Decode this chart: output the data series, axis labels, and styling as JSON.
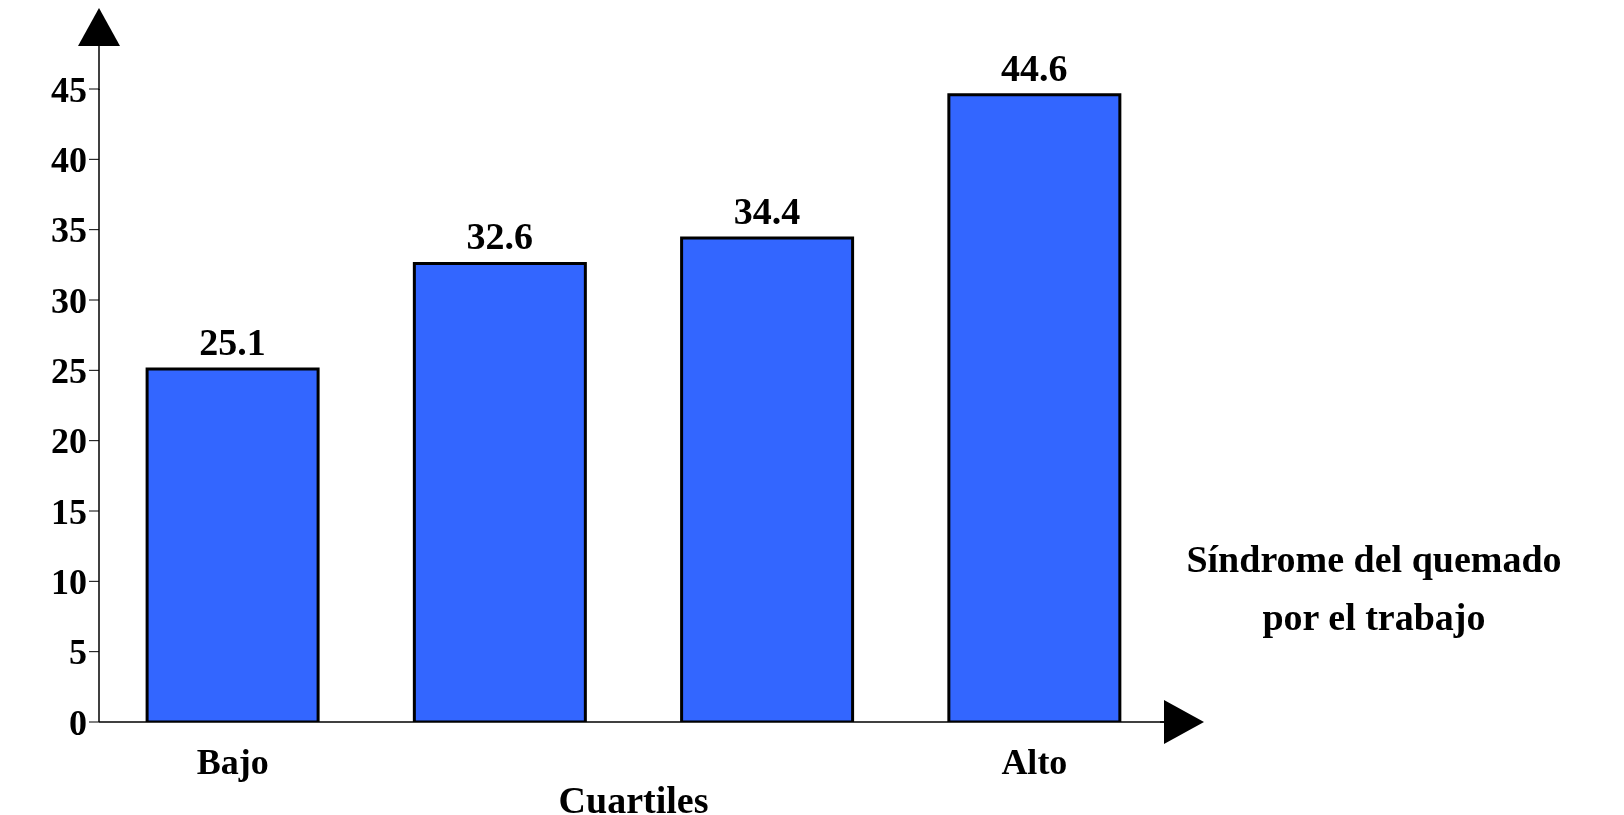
{
  "chart_data": {
    "type": "bar",
    "categories": [
      "Bajo",
      null,
      null,
      "Alto"
    ],
    "values": [
      25.1,
      32.6,
      34.4,
      44.6
    ],
    "color": "#3366ff",
    "ylim": [
      0,
      45
    ],
    "yticks": [
      0,
      5,
      10,
      15,
      20,
      25,
      30,
      35,
      40,
      45
    ],
    "xlabel": "Cuartiles",
    "data_labels": true,
    "grid": false,
    "annotations": [
      "Síndrome del quemado por el trabajo"
    ]
  }
}
